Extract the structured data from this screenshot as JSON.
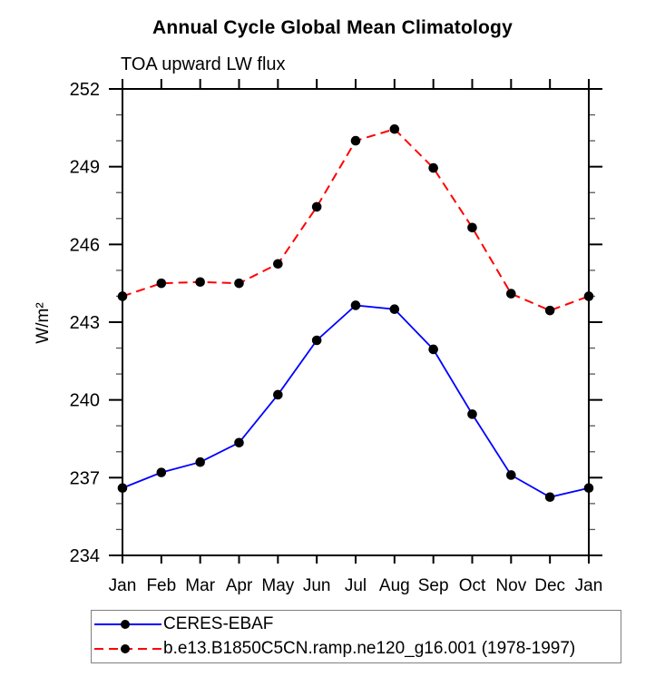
{
  "title": "Annual Cycle Global Mean Climatology",
  "subtitle": "TOA upward LW flux",
  "y_axis_label": "W/m²",
  "legend": {
    "entries": [
      {
        "label": "CERES-EBAF",
        "color": "#0000ff",
        "style": "solid",
        "marker_color": "#000000"
      },
      {
        "label": "b.e13.B1850C5CN.ramp.ne120_g16.001 (1978-1997)",
        "color": "#ff0000",
        "style": "dashed",
        "marker_color": "#000000"
      }
    ]
  },
  "chart_data": {
    "type": "line",
    "title": "Annual Cycle Global Mean Climatology",
    "subtitle": "TOA upward LW flux",
    "ylabel": "W/m²",
    "categories": [
      "Jan",
      "Feb",
      "Mar",
      "Apr",
      "May",
      "Jun",
      "Jul",
      "Aug",
      "Sep",
      "Oct",
      "Nov",
      "Dec",
      "Jan"
    ],
    "series": [
      {
        "name": "CERES-EBAF",
        "color": "#0000ff",
        "line_style": "solid",
        "marker": "filled-circle",
        "marker_color": "#000000",
        "values": [
          236.6,
          237.2,
          237.6,
          238.35,
          240.2,
          242.3,
          243.65,
          243.5,
          241.95,
          239.45,
          237.1,
          236.25,
          236.6
        ]
      },
      {
        "name": "b.e13.B1850C5CN.ramp.ne120_g16.001 (1978-1997)",
        "color": "#ff0000",
        "line_style": "dashed",
        "marker": "filled-circle",
        "marker_color": "#000000",
        "values": [
          244.0,
          244.5,
          244.55,
          244.5,
          245.25,
          247.45,
          250.0,
          250.45,
          248.95,
          246.65,
          244.1,
          243.45,
          244.0
        ]
      }
    ],
    "ylim": [
      234,
      252
    ],
    "ytick_major_step": 3,
    "ytick_minor_step": 1,
    "ytick_labels": [
      "234",
      "237",
      "240",
      "243",
      "246",
      "249",
      "252"
    ],
    "grid": false,
    "legend_position": "bottom"
  }
}
